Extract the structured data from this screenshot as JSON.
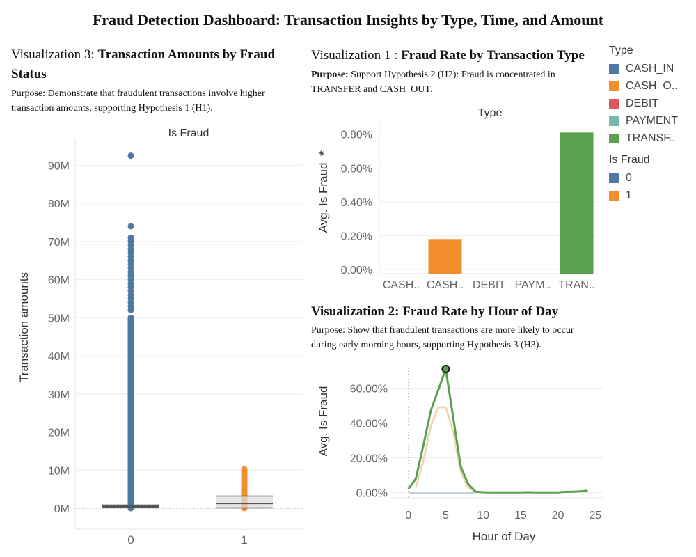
{
  "dashboard": {
    "title": "Fraud Detection Dashboard: Transaction Insights by Type, Time, and Amount"
  },
  "viz3": {
    "heading_prefix": "Visualization 3: ",
    "heading_main": "Transaction Amounts by Fraud Status",
    "purpose": "Purpose: Demonstrate that fraudulent transactions involve higher transaction amounts, supporting Hypothesis 1 (H1)."
  },
  "viz1": {
    "heading_prefix": "Visualization 1 : ",
    "heading_main": "Fraud Rate by Transaction Type",
    "purpose_label": "Purpose:",
    "purpose": " Support Hypothesis 2 (H2): Fraud is concentrated in TRANSFER and CASH_OUT."
  },
  "viz2": {
    "heading_prefix": "Visualization 2: ",
    "heading_main": "Fraud Rate by Hour of Day",
    "purpose": "Purpose: Show that fraudulent transactions are more likely to occur during early morning hours, supporting Hypothesis 3 (H3)."
  },
  "legend": {
    "type_title": "Type",
    "type_items": [
      {
        "label": "CASH_IN",
        "color": "#4e79a7"
      },
      {
        "label": "CASH_O..",
        "color": "#f28e2b"
      },
      {
        "label": "DEBIT",
        "color": "#e15759"
      },
      {
        "label": "PAYMENT",
        "color": "#76b7b2"
      },
      {
        "label": "TRANSF..",
        "color": "#59a14f"
      }
    ],
    "fraud_title": "Is Fraud",
    "fraud_items": [
      {
        "label": "0",
        "color": "#4e79a7"
      },
      {
        "label": "1",
        "color": "#f28e2b"
      }
    ]
  },
  "chart_data": [
    {
      "id": "viz3",
      "type": "scatter",
      "title": "Is Fraud",
      "xlabel": "",
      "ylabel": "Transaction amounts",
      "categories": [
        "0",
        "1"
      ],
      "ylim": [
        0,
        95
      ],
      "y_ticks": [
        "0M",
        "10M",
        "20M",
        "30M",
        "40M",
        "50M",
        "60M",
        "70M",
        "80M",
        "90M"
      ],
      "y_tick_values": [
        0,
        10,
        20,
        30,
        40,
        50,
        60,
        70,
        80,
        90
      ],
      "unit": "M",
      "series": [
        {
          "category": "0",
          "color": "#4e79a7",
          "continuous_range": [
            0,
            50
          ],
          "points": [
            52,
            53,
            54,
            55,
            56,
            57,
            58,
            59,
            60,
            61,
            62,
            63,
            64,
            65,
            66,
            67,
            68,
            69,
            70,
            71,
            74,
            92.5
          ],
          "box": {
            "q1": 0.1,
            "median": 0.4,
            "q3": 0.6
          }
        },
        {
          "category": "1",
          "color": "#f28e2b",
          "continuous_range": [
            0,
            10.2
          ],
          "points": [],
          "box": {
            "q1": 0.1,
            "median": 1.2,
            "q3": 3.2
          }
        }
      ],
      "grid": true
    },
    {
      "id": "viz1",
      "type": "bar",
      "title": "Type",
      "xlabel": "",
      "ylabel": "Avg. Is Fraud",
      "categories": [
        "CASH..",
        "CASH..",
        "DEBIT",
        "PAYM..",
        "TRAN.."
      ],
      "values": [
        0.0,
        0.18,
        0.0,
        0.0,
        0.81
      ],
      "colors": [
        "#4e79a7",
        "#f28e2b",
        "#e15759",
        "#76b7b2",
        "#59a14f"
      ],
      "ylim": [
        0,
        0.84
      ],
      "y_ticks": [
        "0.00%",
        "0.20%",
        "0.40%",
        "0.60%",
        "0.80%"
      ],
      "y_tick_values": [
        0,
        0.2,
        0.4,
        0.6,
        0.8
      ],
      "unit": "%",
      "grid": true
    },
    {
      "id": "viz2",
      "type": "line",
      "title": "",
      "xlabel": "Hour of Day",
      "ylabel": "Avg. Is Fraud",
      "xlim": [
        -2.3,
        26
      ],
      "ylim": [
        -3,
        73
      ],
      "x_ticks": [
        "0",
        "5",
        "10",
        "15",
        "20",
        "25"
      ],
      "x_tick_values": [
        0,
        5,
        10,
        15,
        20,
        25
      ],
      "y_ticks": [
        "0.00%",
        "20.00%",
        "40.00%",
        "60.00%"
      ],
      "y_tick_values": [
        0,
        20,
        40,
        60
      ],
      "unit": "%",
      "series": [
        {
          "color": "#59a14f",
          "x": [
            0,
            1,
            2,
            3,
            4,
            5,
            6,
            7,
            8,
            9,
            10,
            11,
            12,
            13,
            14,
            15,
            16,
            17,
            18,
            19,
            20,
            21,
            22,
            23,
            24
          ],
          "y": [
            2,
            8,
            27,
            47,
            59,
            71,
            43,
            15,
            5,
            0.5,
            0.2,
            0.1,
            0.1,
            0.1,
            0.1,
            0.1,
            0.2,
            0.1,
            0.1,
            0.1,
            0.1,
            0.4,
            0.5,
            0.7,
            1.1
          ]
        },
        {
          "color": "#f1d7b8",
          "x": [
            1,
            2,
            3,
            4,
            5,
            6,
            7,
            8,
            9
          ],
          "y": [
            3,
            18,
            38,
            49,
            49,
            35,
            12,
            3,
            0.5
          ]
        },
        {
          "color": "#c6d1dc",
          "x": [
            0,
            1,
            2,
            3,
            4,
            5,
            6,
            7,
            8,
            9
          ],
          "y": [
            0,
            0,
            0,
            0,
            0,
            0,
            0,
            0,
            0,
            0
          ]
        }
      ],
      "highlight": {
        "x": 5,
        "y": 71
      },
      "grid": true
    }
  ]
}
